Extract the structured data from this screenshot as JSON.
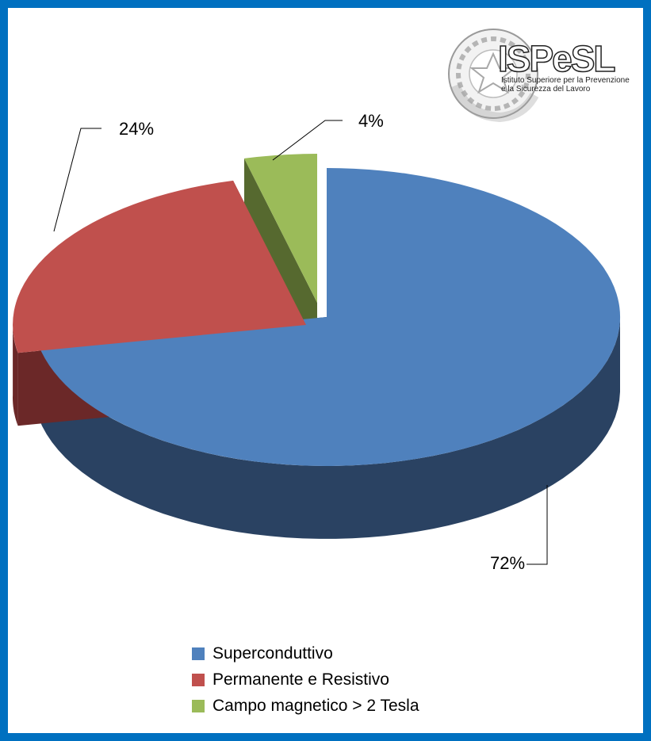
{
  "chart_data": {
    "type": "pie",
    "title": "",
    "legend_position": "bottom",
    "slices": [
      {
        "name": "Superconduttivo",
        "value": 72,
        "label": "72%",
        "color": "#4F81BD",
        "side_color": "#2A4262"
      },
      {
        "name": "Permanente e Resistivo",
        "value": 24,
        "label": "24%",
        "color": "#C0504D",
        "side_color": "#6B2828"
      },
      {
        "name": "Campo magnetico > 2 Tesla",
        "value": 4,
        "label": "4%",
        "color": "#9BBB59",
        "side_color": "#56692F"
      }
    ]
  },
  "logo": {
    "name": "ISPeSL",
    "subtitle_line1": "Istituto Superiore per la Prevenzione",
    "subtitle_line2": "e la Sicurezza del Lavoro",
    "seal_text": "REPVBBLICA ITALIANA"
  }
}
